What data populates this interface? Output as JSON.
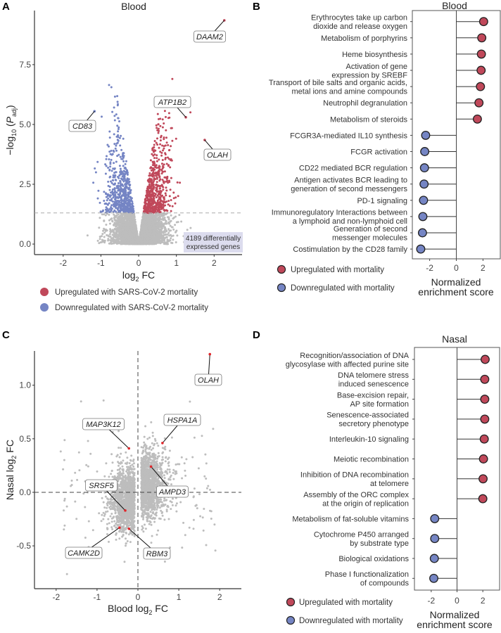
{
  "colors": {
    "up": "#c0485a",
    "down": "#7585c4",
    "ns": "#bdbdbd",
    "highlight": "#e0262b",
    "annotation_box": "#dcdcee"
  },
  "panels": {
    "a": {
      "letter": "A",
      "title": "Blood"
    },
    "b": {
      "letter": "B",
      "title": "Blood"
    },
    "c": {
      "letter": "C"
    },
    "d": {
      "letter": "D",
      "title": "Nasal"
    }
  },
  "legend_a": {
    "up": "Upregulated with SARS-CoV-2 mortality",
    "down": "Downregulated with SARS-CoV-2 mortality"
  },
  "legend_bd": {
    "up": "Upregulated with mortality",
    "down": "Downregulated with mortality"
  },
  "chart_data": [
    {
      "panel": "A",
      "type": "scatter",
      "title": "Blood",
      "xlabel": {
        "main": "log",
        "sub": "2",
        "rest": " FC"
      },
      "ylabel": {
        "main": "−log",
        "sub": "10",
        "open": " (",
        "p": "P",
        "p_sub": "adj",
        "close": ")"
      },
      "xlim": [
        -2.76,
        2.74
      ],
      "ylim": [
        -0.44,
        9.76
      ],
      "xticks": [
        "-2",
        "-1",
        "0",
        "1",
        "2"
      ],
      "xtick_values": [
        -2,
        -1,
        0,
        1,
        2
      ],
      "yticks": [
        "0.0",
        "2.5",
        "5.0",
        "7.5"
      ],
      "ytick_values": [
        0,
        2.5,
        5,
        7.5
      ],
      "threshold_y": 1.3,
      "annotation": [
        "4189 differentially",
        "expressed genes"
      ],
      "labeled_points": [
        {
          "gene": "DAAM2",
          "x": 2.27,
          "y": 9.35,
          "group": "up"
        },
        {
          "gene": "ATP1B2",
          "x": 1.25,
          "y": 5.3,
          "group": "up"
        },
        {
          "gene": "OLAH",
          "x": 1.75,
          "y": 4.35,
          "group": "up"
        },
        {
          "gene": "CD83",
          "x": -1.17,
          "y": 5.55,
          "group": "down"
        }
      ],
      "grid": false
    },
    {
      "panel": "B",
      "type": "lollipop",
      "title": "Blood",
      "xlabel": [
        "Normalized",
        "enrichment score"
      ],
      "xlim": [
        -3.3,
        3.3
      ],
      "xticks": [
        "-2",
        "0",
        "2"
      ],
      "xtick_values": [
        -2,
        0,
        2
      ],
      "pathways": [
        {
          "label": [
            "Erythrocytes take up carbon",
            "dioxide and release oxygen"
          ],
          "nes": 2.05
        },
        {
          "label": [
            "Metabolism of porphyrins"
          ],
          "nes": 1.91
        },
        {
          "label": [
            "Heme biosynthesis"
          ],
          "nes": 1.88
        },
        {
          "label": [
            "Activation of gene",
            "expression by SREBF"
          ],
          "nes": 1.86
        },
        {
          "label": [
            "Transport of bile salts and organic acids,",
            "metal ions and amine compounds"
          ],
          "nes": 1.81
        },
        {
          "label": [
            "Neutrophil degranulation"
          ],
          "nes": 1.7
        },
        {
          "label": [
            "Metabolism of steroids"
          ],
          "nes": 1.58
        },
        {
          "label": [
            "FCGR3A-mediated IL10 synthesis"
          ],
          "nes": -2.3
        },
        {
          "label": [
            "FCGR activation"
          ],
          "nes": -2.37
        },
        {
          "label": [
            "CD22 mediated BCR regulation"
          ],
          "nes": -2.39
        },
        {
          "label": [
            "Antigen activates BCR leading to",
            "generation of second messengers"
          ],
          "nes": -2.42
        },
        {
          "label": [
            "PD-1 signaling"
          ],
          "nes": -2.46
        },
        {
          "label": [
            "Immunoregulatory Interactions between",
            "a lymphoid and non-lymphoid cell"
          ],
          "nes": -2.51
        },
        {
          "label": [
            "Generation of second",
            "messenger molecules"
          ],
          "nes": -2.54
        },
        {
          "label": [
            "Costimulation by the CD28 family"
          ],
          "nes": -2.67
        }
      ]
    },
    {
      "panel": "C",
      "type": "scatter",
      "xlabel": {
        "main": "Blood log",
        "sub": "2",
        "rest": " FC"
      },
      "ylabel": {
        "main": "Nasal log",
        "sub": "2",
        "rest": " FC"
      },
      "xlim": [
        -2.53,
        2.53
      ],
      "ylim": [
        -0.9,
        1.32
      ],
      "xticks": [
        "-2",
        "-1",
        "0",
        "1",
        "2"
      ],
      "xtick_values": [
        -2,
        -1,
        0,
        1,
        2
      ],
      "yticks": [
        "-0.5",
        "0.0",
        "0.5",
        "1.0"
      ],
      "ytick_values": [
        -0.5,
        0,
        0.5,
        1.0
      ],
      "reference_lines": {
        "x": 0,
        "y": 0
      },
      "labeled_points": [
        {
          "gene": "OLAH",
          "x": 1.76,
          "y": 1.29
        },
        {
          "gene": "HSPA1A",
          "x": 0.6,
          "y": 0.46
        },
        {
          "gene": "MAP3K12",
          "x": -0.22,
          "y": 0.41
        },
        {
          "gene": "AMPD3",
          "x": 0.32,
          "y": 0.24
        },
        {
          "gene": "SRSF5",
          "x": -0.31,
          "y": -0.17
        },
        {
          "gene": "CAMK2D",
          "x": -0.45,
          "y": -0.33
        },
        {
          "gene": "RBM3",
          "x": -0.22,
          "y": -0.34
        }
      ],
      "grid": false
    },
    {
      "panel": "D",
      "type": "lollipop",
      "title": "Nasal",
      "xlabel": [
        "Normalized",
        "enrichment score"
      ],
      "xlim": [
        -3.3,
        3.3
      ],
      "xticks": [
        "-2",
        "0",
        "2"
      ],
      "xtick_values": [
        -2,
        0,
        2
      ],
      "pathways": [
        {
          "label": [
            "Recognition/association of DNA",
            "glycosylase with affected purine site"
          ],
          "nes": 2.18
        },
        {
          "label": [
            "DNA telomere stress",
            "induced senescence"
          ],
          "nes": 2.15
        },
        {
          "label": [
            "Base-excision repair,",
            "AP site formation"
          ],
          "nes": 2.15
        },
        {
          "label": [
            "Senescence-associated",
            "secretory phenotype"
          ],
          "nes": 2.15
        },
        {
          "label": [
            "Interleukin-10 signaling"
          ],
          "nes": 2.11
        },
        {
          "label": [
            "Meiotic recombination"
          ],
          "nes": 2.05
        },
        {
          "label": [
            "Inhibition of DNA recombination",
            "at telomere"
          ],
          "nes": 2.02
        },
        {
          "label": [
            "Assembly of the ORC complex",
            "at the origin of replication"
          ],
          "nes": 2.0
        },
        {
          "label": [
            "Metabolism of fat-soluble vitamins"
          ],
          "nes": -1.73
        },
        {
          "label": [
            "Cytochrome P450 arranged",
            "by substrate type"
          ],
          "nes": -1.73
        },
        {
          "label": [
            "Biological oxidations"
          ],
          "nes": -1.76
        },
        {
          "label": [
            "Phase I functionalization",
            "of compounds"
          ],
          "nes": -1.8
        }
      ]
    }
  ]
}
